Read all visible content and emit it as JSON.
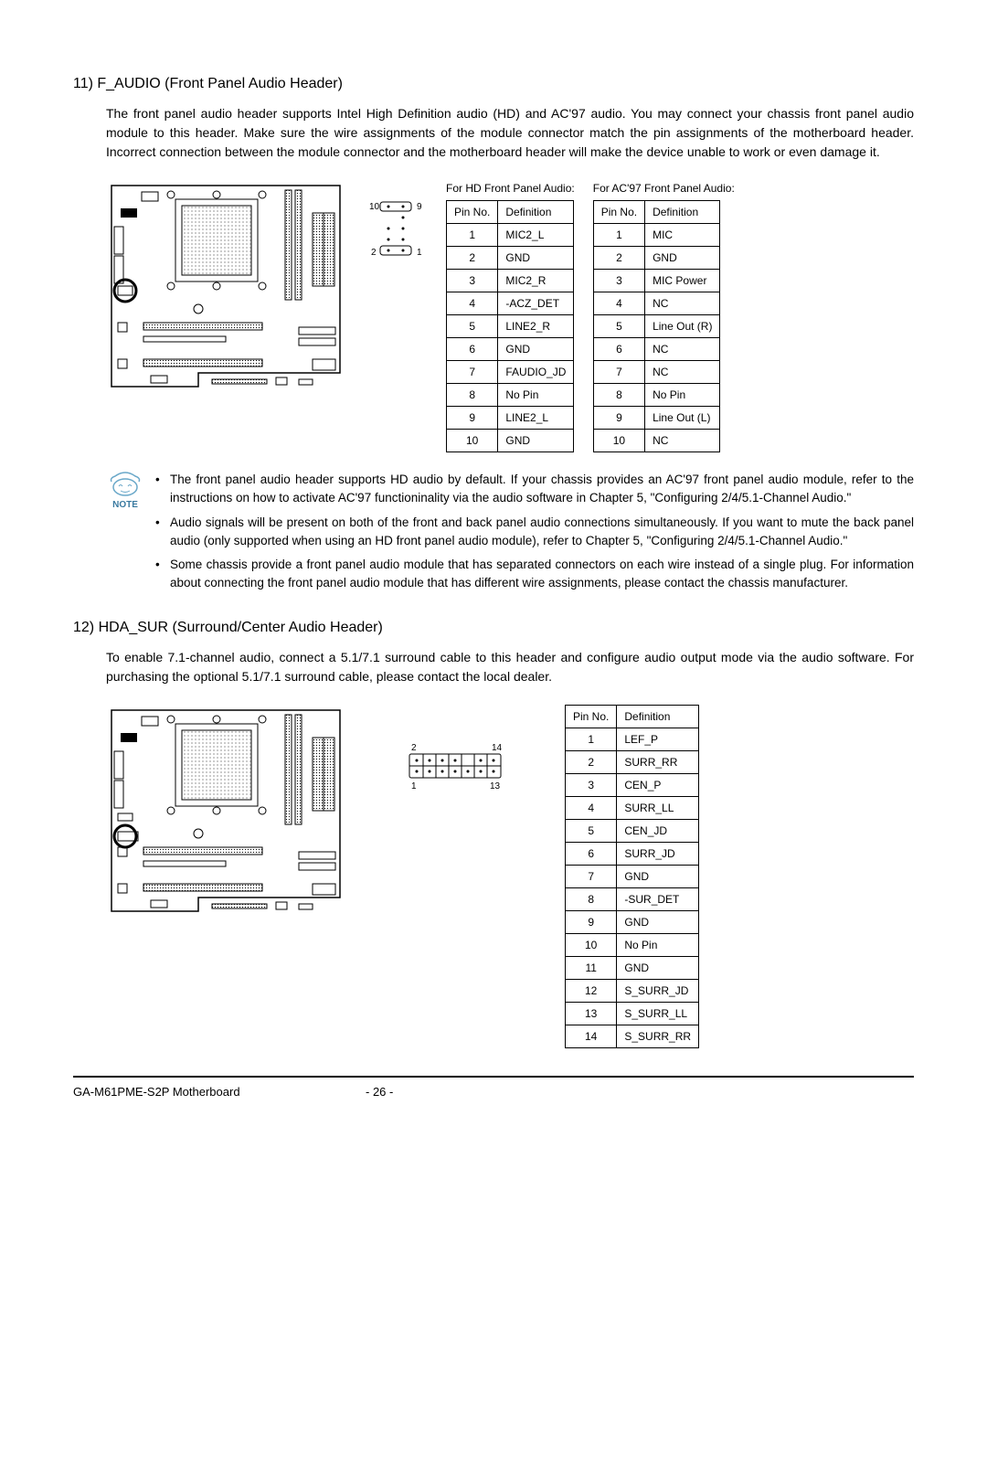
{
  "section11": {
    "heading": "11)  F_AUDIO  (Front Panel Audio Header)",
    "body": "The front panel audio header supports Intel High Definition audio (HD) and AC'97 audio. You may connect your chassis front panel audio module to this header. Make sure the wire assignments of the module connector match the pin assignments of the motherboard header. Incorrect connection between the module connector and the motherboard header will make the device unable to work or even damage it.",
    "hd_caption": "For HD  Front Panel Audio:",
    "ac97_caption": "For  AC'97 Front Panel Audio:",
    "col_pin": "Pin No.",
    "col_def": "Definition",
    "hd_rows": [
      {
        "pin": "1",
        "def": "MIC2_L"
      },
      {
        "pin": "2",
        "def": "GND"
      },
      {
        "pin": "3",
        "def": "MIC2_R"
      },
      {
        "pin": "4",
        "def": "-ACZ_DET"
      },
      {
        "pin": "5",
        "def": "LINE2_R"
      },
      {
        "pin": "6",
        "def": "GND"
      },
      {
        "pin": "7",
        "def": "FAUDIO_JD"
      },
      {
        "pin": "8",
        "def": "No Pin"
      },
      {
        "pin": "9",
        "def": "LINE2_L"
      },
      {
        "pin": "10",
        "def": "GND"
      }
    ],
    "ac97_rows": [
      {
        "pin": "1",
        "def": "MIC"
      },
      {
        "pin": "2",
        "def": "GND"
      },
      {
        "pin": "3",
        "def": "MIC Power"
      },
      {
        "pin": "4",
        "def": "NC"
      },
      {
        "pin": "5",
        "def": "Line Out (R)"
      },
      {
        "pin": "6",
        "def": "NC"
      },
      {
        "pin": "7",
        "def": "NC"
      },
      {
        "pin": "8",
        "def": "No Pin"
      },
      {
        "pin": "9",
        "def": "Line Out (L)"
      },
      {
        "pin": "10",
        "def": "NC"
      }
    ],
    "pin_labels": {
      "tl": "10",
      "tr": "9",
      "bl": "2",
      "br": "1"
    },
    "notes": [
      "The front panel audio header supports HD audio by default. If your chassis provides an AC'97 front panel audio module, refer to the instructions on how to activate AC'97 functioninality via the audio software in Chapter 5, \"Configuring 2/4/5.1-Channel Audio.\"",
      "Audio signals will be present on both of the front and back panel audio connections simultaneously. If you want to mute the back panel audio (only supported when using an HD front panel audio module), refer to Chapter 5, \"Configuring 2/4/5.1-Channel Audio.\"",
      "Some chassis provide a front panel audio module that has separated connectors on each wire instead of a single plug. For information about connecting the front panel audio module that has different wire assignments, please contact the chassis manufacturer."
    ],
    "note_label": "NOTE"
  },
  "section12": {
    "heading": "12)  HDA_SUR (Surround/Center Audio Header)",
    "body": "To enable 7.1-channel audio, connect a 5.1/7.1 surround cable to this header and configure audio output mode via the audio software. For purchasing the optional 5.1/7.1 surround cable, please contact the local dealer.",
    "col_pin": "Pin No.",
    "col_def": "Definition",
    "rows": [
      {
        "pin": "1",
        "def": "LEF_P"
      },
      {
        "pin": "2",
        "def": "SURR_RR"
      },
      {
        "pin": "3",
        "def": "CEN_P"
      },
      {
        "pin": "4",
        "def": "SURR_LL"
      },
      {
        "pin": "5",
        "def": "CEN_JD"
      },
      {
        "pin": "6",
        "def": "SURR_JD"
      },
      {
        "pin": "7",
        "def": "GND"
      },
      {
        "pin": "8",
        "def": "-SUR_DET"
      },
      {
        "pin": "9",
        "def": "GND"
      },
      {
        "pin": "10",
        "def": "No Pin"
      },
      {
        "pin": "11",
        "def": "GND"
      },
      {
        "pin": "12",
        "def": "S_SURR_JD"
      },
      {
        "pin": "13",
        "def": "S_SURR_LL"
      },
      {
        "pin": "14",
        "def": "S_SURR_RR"
      }
    ],
    "pin_labels": {
      "tl": "2",
      "tr": "14",
      "bl": "1",
      "br": "13"
    }
  },
  "footer": {
    "left": "GA-M61PME-S2P Motherboard",
    "center": "- 26 -"
  }
}
